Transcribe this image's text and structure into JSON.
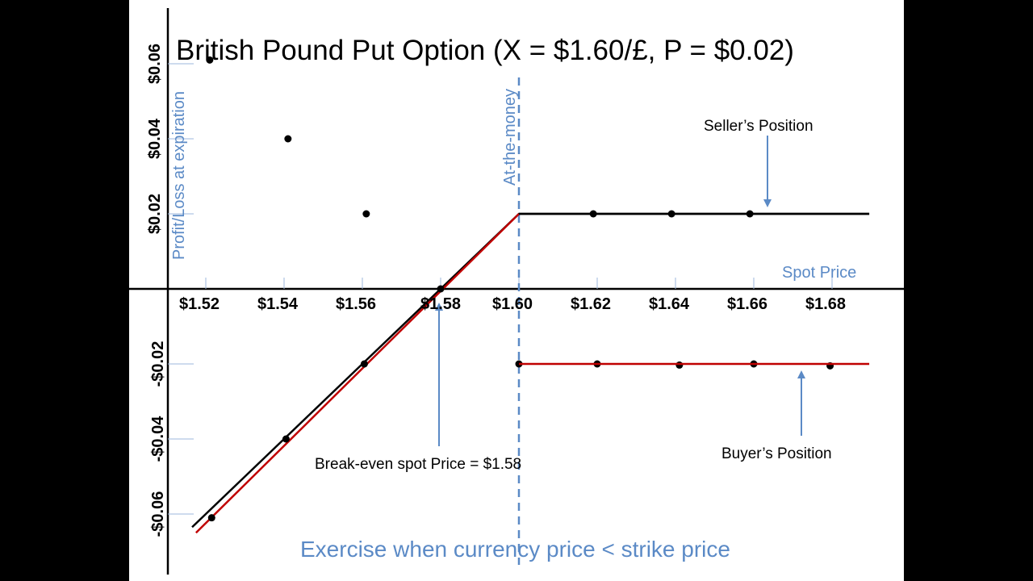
{
  "chart_data": {
    "type": "line",
    "title": "British Pound Put Option (X = $1.60/£, P = $0.02)",
    "xlabel": "Spot Price",
    "ylabel": "Profit/Loss at expiration",
    "x_tick_labels": [
      "$1.52",
      "$1.54",
      "$1.56",
      "$1.58",
      "$1.60",
      "$1.62",
      "$1.64",
      "$1.66",
      "$1.68"
    ],
    "y_tick_labels": [
      "$0.06",
      "$0.04",
      "$0.02",
      "-$0.02",
      "-$0.04",
      "-$0.06"
    ],
    "xlim": [
      1.51,
      1.7
    ],
    "ylim": [
      -0.065,
      0.075
    ],
    "series": [
      {
        "name": "Seller’s Position",
        "color": "#000000",
        "x": [
          1.52,
          1.54,
          1.56,
          1.58,
          1.6,
          1.62,
          1.64,
          1.66
        ],
        "y": [
          -0.06,
          -0.04,
          -0.02,
          0.0,
          0.02,
          0.02,
          0.02,
          0.02
        ]
      },
      {
        "name": "Buyer’s Position",
        "color": "#c00000",
        "x": [
          1.52,
          1.54,
          1.56,
          1.58,
          1.6,
          1.62,
          1.64,
          1.66,
          1.68
        ],
        "y": [
          0.06,
          0.04,
          0.02,
          0.0,
          -0.02,
          -0.02,
          -0.02,
          -0.02,
          -0.02
        ]
      }
    ],
    "vertical_line": {
      "x": 1.6,
      "label": "At-the-money",
      "style": "dashed",
      "color": "#5b8ac6"
    },
    "annotations": {
      "seller": "Seller’s Position",
      "buyer": "Buyer’s Position",
      "breakeven": "Break-even spot Price = $1.58",
      "exercise": "Exercise when currency price < strike price"
    },
    "grid": false
  }
}
